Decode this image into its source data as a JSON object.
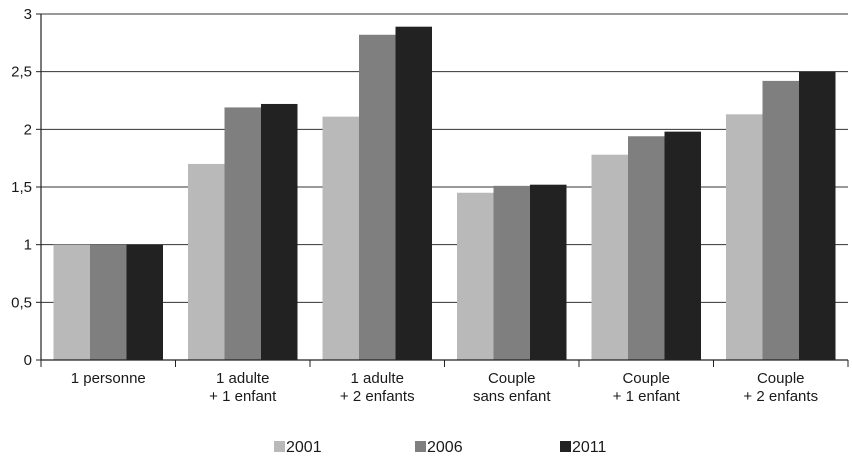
{
  "chart_data": {
    "type": "bar",
    "categories": [
      [
        "1 personne"
      ],
      [
        "1 adulte",
        "+ 1 enfant"
      ],
      [
        "1 adulte",
        "+ 2 enfants"
      ],
      [
        "Couple",
        "sans enfant"
      ],
      [
        "Couple",
        "+ 1 enfant"
      ],
      [
        "Couple",
        "+ 2 enfants"
      ]
    ],
    "series": [
      {
        "name": "2001",
        "color": "#b9b9b9",
        "values": [
          1.0,
          1.7,
          2.11,
          1.45,
          1.78,
          2.13
        ]
      },
      {
        "name": "2006",
        "color": "#7f7f7f",
        "values": [
          1.0,
          2.19,
          2.82,
          1.51,
          1.94,
          2.42
        ]
      },
      {
        "name": "2011",
        "color": "#222222",
        "values": [
          1.0,
          2.22,
          2.89,
          1.52,
          1.98,
          2.5
        ]
      }
    ],
    "y_ticks": [
      "0",
      "0,5",
      "1",
      "1,5",
      "2",
      "2,5",
      "3"
    ],
    "ylim": [
      0,
      3
    ],
    "grid": true,
    "legend_position": "bottom",
    "title": "",
    "xlabel": "",
    "ylabel": ""
  }
}
